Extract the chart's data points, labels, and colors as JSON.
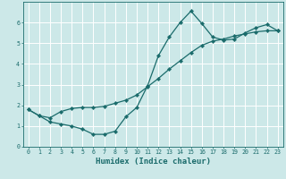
{
  "xlabel": "Humidex (Indice chaleur)",
  "background_color": "#cce8e8",
  "grid_color": "#ffffff",
  "line_color": "#1a6b6b",
  "xlim": [
    -0.5,
    23.5
  ],
  "ylim": [
    0,
    7
  ],
  "xticks": [
    0,
    1,
    2,
    3,
    4,
    5,
    6,
    7,
    8,
    9,
    10,
    11,
    12,
    13,
    14,
    15,
    16,
    17,
    18,
    19,
    20,
    21,
    22,
    23
  ],
  "yticks": [
    0,
    1,
    2,
    3,
    4,
    5,
    6
  ],
  "curve1_x": [
    0,
    1,
    2,
    3,
    4,
    5,
    6,
    7,
    8,
    9,
    10,
    11,
    12,
    13,
    14,
    15,
    16,
    17,
    18,
    19,
    20,
    21,
    22,
    23
  ],
  "curve1_y": [
    1.8,
    1.5,
    1.2,
    1.1,
    1.0,
    0.85,
    0.6,
    0.6,
    0.75,
    1.45,
    1.9,
    2.95,
    4.4,
    5.3,
    6.0,
    6.55,
    5.95,
    5.3,
    5.15,
    5.2,
    5.5,
    5.75,
    5.9,
    5.6
  ],
  "curve2_x": [
    0,
    1,
    2,
    3,
    4,
    5,
    6,
    7,
    8,
    9,
    10,
    11,
    12,
    13,
    14,
    15,
    16,
    17,
    18,
    19,
    20,
    21,
    22,
    23
  ],
  "curve2_y": [
    1.8,
    1.5,
    1.4,
    1.7,
    1.85,
    1.9,
    1.9,
    1.95,
    2.1,
    2.25,
    2.5,
    2.9,
    3.3,
    3.75,
    4.15,
    4.55,
    4.9,
    5.1,
    5.2,
    5.35,
    5.45,
    5.55,
    5.6,
    5.6
  ],
  "marker": "D",
  "marker_size": 2.2,
  "linewidth": 0.9
}
